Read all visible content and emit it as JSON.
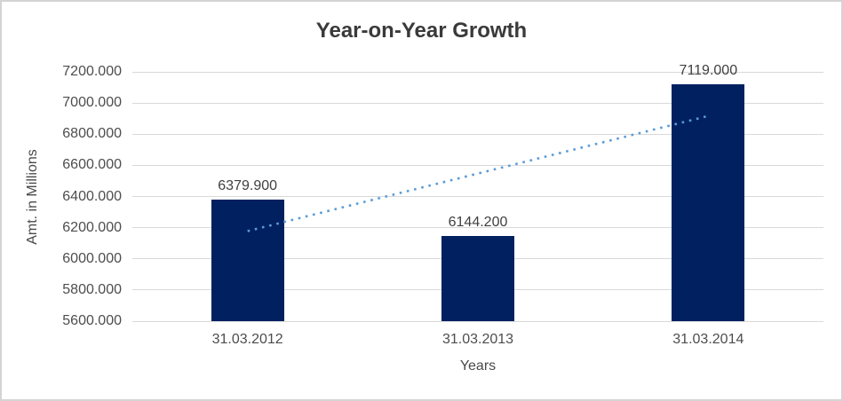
{
  "chart_data": {
    "type": "bar",
    "title": "Year-on-Year Growth",
    "xlabel": "Years",
    "ylabel": "Amt. in Millions",
    "categories": [
      "31.03.2012",
      "31.03.2013",
      "31.03.2014"
    ],
    "values": [
      6379.9,
      6144.2,
      7119.0
    ],
    "data_labels": [
      "6379.900",
      "6144.200",
      "7119.000"
    ],
    "ylim": [
      5600,
      7200
    ],
    "ytick_step": 200,
    "ytick_labels": [
      "5600.000",
      "5800.000",
      "6000.000",
      "6200.000",
      "6400.000",
      "6600.000",
      "6800.000",
      "7000.000",
      "7200.000"
    ],
    "grid": true,
    "legend": "none",
    "bar_color": "#002060",
    "gridline_color": "#d9d9d9",
    "trendline": {
      "type": "linear",
      "style": "dotted",
      "color": "#5b9bd5",
      "start_value": 6178,
      "end_value": 6917
    }
  }
}
